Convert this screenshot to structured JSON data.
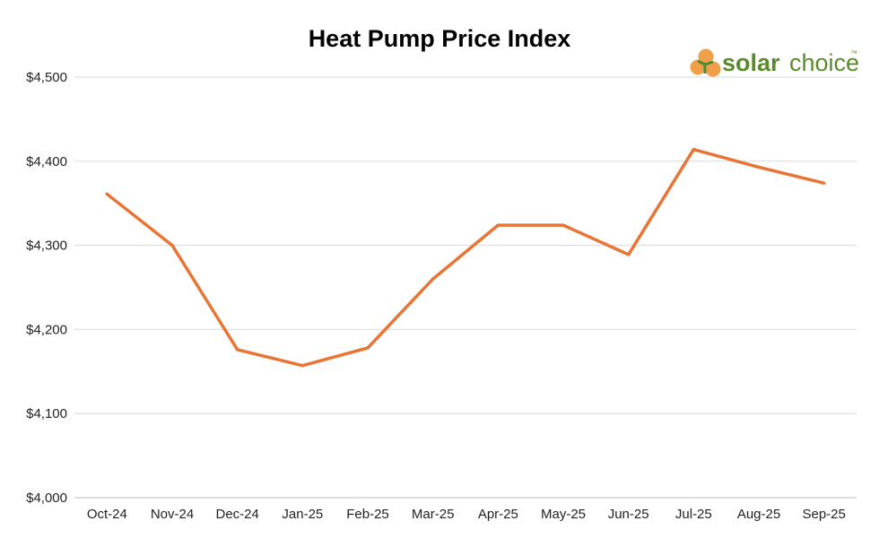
{
  "chart_data": {
    "type": "line",
    "title": "Heat Pump Price Index",
    "categories": [
      "Oct-24",
      "Nov-24",
      "Dec-24",
      "Jan-25",
      "Feb-25",
      "Mar-25",
      "Apr-25",
      "May-25",
      "Jun-25",
      "Jul-25",
      "Aug-25",
      "Sep-25"
    ],
    "series": [
      {
        "values": [
          4361,
          4300,
          4176,
          4157,
          4178,
          4260,
          4324,
          4324,
          4289,
          4414,
          4393,
          4374
        ]
      }
    ],
    "ylim": [
      4000,
      4500
    ],
    "yticks": [
      4000,
      4100,
      4200,
      4300,
      4400,
      4500
    ],
    "ytick_labels": [
      "$4,000",
      "$4,100",
      "$4,200",
      "$4,300",
      "$4,400",
      "$4,500"
    ],
    "grid": true,
    "colors": {
      "line": "#E87535",
      "brand_orange": "#F0A04B",
      "brand_green": "#4E8A2E",
      "brand_text_green": "#5A8A2C"
    }
  },
  "brand": {
    "name_part1": "solar",
    "name_part2": "choice",
    "trademark": "™"
  }
}
